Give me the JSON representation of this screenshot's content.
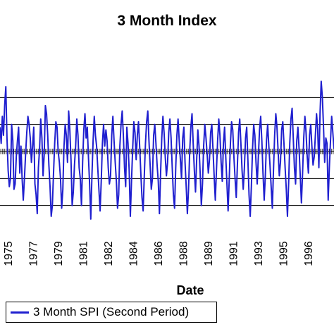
{
  "chart_data": {
    "type": "line",
    "title": "3 Month Index",
    "xlabel": "Date",
    "ylabel": "",
    "ylim": [
      -3,
      3
    ],
    "y_gridlines": [
      -2,
      -1,
      0,
      1,
      2
    ],
    "grid": true,
    "legend_position": "bottom-left",
    "x_tick_labels": [
      "1975",
      "1977",
      "1979",
      "1981",
      "1982",
      "1984",
      "1986",
      "1988",
      "1989",
      "1991",
      "1993",
      "1995",
      "1996"
    ],
    "series": [
      {
        "name": "3 Month SPI (Second Period)",
        "color": "#1f1fcf",
        "values": [
          0.9,
          0.3,
          1.3,
          0.6,
          1.7,
          2.4,
          0.5,
          -0.7,
          -1.3,
          -1.0,
          1.0,
          0.4,
          -1.4,
          -1.2,
          -0.2,
          0.4,
          0.9,
          -0.8,
          0.2,
          -1.0,
          -1.8,
          -1.0,
          -0.1,
          0.7,
          1.3,
          1.0,
          0.5,
          -0.4,
          0.2,
          0.9,
          -1.2,
          -1.6,
          -2.3,
          -0.6,
          0.1,
          1.2,
          0.5,
          -0.9,
          -0.1,
          1.7,
          1.4,
          0.6,
          -0.5,
          -1.3,
          -2.4,
          -2.0,
          -0.8,
          0.3,
          1.1,
          0.9,
          0.0,
          -0.4,
          -1.0,
          -2.1,
          -1.4,
          0.2,
          1.0,
          0.6,
          -0.4,
          1.5,
          0.8,
          -0.3,
          -2.0,
          -1.5,
          -0.5,
          0.2,
          1.2,
          0.6,
          -0.6,
          -1.0,
          -2.0,
          -0.4,
          0.8,
          1.4,
          0.5,
          0.9,
          -0.2,
          -1.2,
          -2.5,
          -0.9,
          0.4,
          1.3,
          0.6,
          0.2,
          -0.6,
          -1.4,
          -2.2,
          -1.1,
          0.3,
          1.0,
          0.2,
          0.8,
          0.4,
          -0.6,
          -1.2,
          -0.9,
          0.6,
          1.3,
          0.4,
          -0.4,
          -1.1,
          -2.1,
          -1.6,
          0.2,
          1.0,
          1.5,
          0.6,
          -0.6,
          -1.3,
          0.9,
          0.3,
          -0.7,
          -2.4,
          -1.1,
          0.1,
          1.1,
          0.7,
          -0.3,
          0.6,
          1.1,
          0.2,
          -0.8,
          -1.7,
          -2.2,
          -0.9,
          0.3,
          1.1,
          1.5,
          0.4,
          -0.5,
          -1.4,
          -1.0,
          0.6,
          1.0,
          0.3,
          -0.5,
          -1.1,
          -2.3,
          -0.8,
          0.5,
          1.3,
          0.7,
          -0.2,
          -0.9,
          -0.4,
          0.7,
          1.2,
          0.5,
          -0.6,
          -1.6,
          -2.1,
          -0.6,
          0.6,
          1.2,
          0.4,
          -0.3,
          -1.0,
          0.5,
          0.9,
          -0.4,
          -1.3,
          -2.3,
          -1.4,
          0.0,
          0.9,
          1.4,
          0.3,
          -0.7,
          -1.5,
          -0.3,
          0.8,
          0.2,
          -0.8,
          -2.0,
          -1.2,
          0.2,
          1.0,
          0.5,
          -0.1,
          -0.8,
          -0.3,
          0.7,
          1.0,
          0.1,
          -0.9,
          -1.8,
          -0.7,
          0.4,
          1.2,
          0.6,
          -0.4,
          -1.1,
          0.3,
          0.9,
          -0.2,
          -1.2,
          -2.2,
          -1.0,
          0.3,
          1.1,
          0.8,
          -0.2,
          -1.0,
          -1.7,
          -0.5,
          0.7,
          1.2,
          0.3,
          -0.7,
          -1.4,
          -0.6,
          0.5,
          0.9,
          -0.3,
          -1.6,
          -2.4,
          -1.3,
          0.1,
          1.0,
          0.6,
          -0.4,
          -1.2,
          -0.2,
          0.8,
          1.3,
          0.4,
          -0.8,
          -1.8,
          -0.9,
          0.4,
          1.0,
          0.2,
          -0.5,
          -1.3,
          -2.1,
          -0.7,
          0.6,
          1.4,
          0.9,
          0.0,
          -0.9,
          -0.4,
          0.8,
          1.1,
          0.3,
          -0.6,
          -1.4,
          -2.4,
          -1.2,
          0.3,
          1.2,
          1.6,
          0.5,
          -0.6,
          -1.2,
          0.4,
          0.9,
          0.1,
          -0.9,
          -1.9,
          -0.8,
          0.5,
          1.3,
          0.7,
          -0.2,
          -0.8,
          0.6,
          1.0,
          0.2,
          -0.5,
          -0.2,
          0.6,
          1.4,
          0.8,
          -0.6,
          1.4,
          2.6,
          2.0,
          0.9,
          -0.4,
          0.5,
          0.3,
          -1.8,
          -0.6,
          0.4,
          1.3,
          0.7,
          0.1
        ]
      }
    ]
  }
}
